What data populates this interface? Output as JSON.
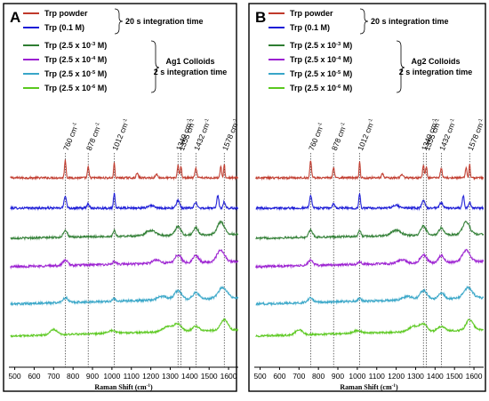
{
  "chart_data": [
    {
      "type": "line",
      "panel_label": "A",
      "xlabel": "Raman Shift (cm-1)",
      "xlim": [
        470,
        1650
      ],
      "xticks": [
        500,
        600,
        700,
        800,
        900,
        1000,
        1100,
        1200,
        1300,
        1400,
        1500,
        1600
      ],
      "band_markers": [
        {
          "label": "760 cm-1",
          "x": 760
        },
        {
          "label": "878 cm-1",
          "x": 878
        },
        {
          "label": "1012 cm-1",
          "x": 1012
        },
        {
          "label": "1340 cm-1",
          "x": 1340
        },
        {
          "label": "1355 cm-1",
          "x": 1355
        },
        {
          "label": "1432 cm-1",
          "x": 1432
        },
        {
          "label": "1578 cm-1",
          "x": 1578
        }
      ],
      "group_labels": [
        {
          "lines": [
            "20 s integration time"
          ]
        },
        {
          "lines": [
            "Ag1 Colloids",
            "2 s integration time"
          ]
        }
      ],
      "series": [
        {
          "name": "Trp  powder",
          "color": "#c0392b"
        },
        {
          "name": "Trp (0.1 M)",
          "color": "#1a1ad6"
        },
        {
          "name": "Trp (2.5 x 10-3 M)",
          "color": "#2e7d32"
        },
        {
          "name": "Trp (2.5 x 10-4 M)",
          "color": "#9b1fd1"
        },
        {
          "name": "Trp (2.5 x 10-5 M)",
          "color": "#38a6c8"
        },
        {
          "name": "Trp (2.5 x 10-6 M)",
          "color": "#5ac81e"
        }
      ]
    },
    {
      "type": "line",
      "panel_label": "B",
      "xlabel": "Raman Shift (cm-1)",
      "xlim": [
        470,
        1650
      ],
      "xticks": [
        500,
        600,
        700,
        800,
        900,
        1000,
        1100,
        1200,
        1300,
        1400,
        1500,
        1600
      ],
      "band_markers": [
        {
          "label": "760 cm-1",
          "x": 760
        },
        {
          "label": "878 cm-1",
          "x": 878
        },
        {
          "label": "1012 cm-1",
          "x": 1012
        },
        {
          "label": "1340 cm-1",
          "x": 1340
        },
        {
          "label": "1355 cm-1",
          "x": 1355
        },
        {
          "label": "1432 cm-1",
          "x": 1432
        },
        {
          "label": "1578 cm-1",
          "x": 1578
        }
      ],
      "group_labels": [
        {
          "lines": [
            "20 s integration time"
          ]
        },
        {
          "lines": [
            "Ag2 Colloids",
            "2 s integration time"
          ]
        }
      ],
      "series": [
        {
          "name": "Trp  powder",
          "color": "#c0392b"
        },
        {
          "name": "Trp (0.1 M)",
          "color": "#1a1ad6"
        },
        {
          "name": "Trp (2.5 x 10-3 M)",
          "color": "#2e7d32"
        },
        {
          "name": "Trp (2.5 x 10-4 M)",
          "color": "#9b1fd1"
        },
        {
          "name": "Trp (2.5 x 10-5 M)",
          "color": "#38a6c8"
        },
        {
          "name": "Trp (2.5 x 10-6 M)",
          "color": "#5ac81e"
        }
      ]
    }
  ]
}
